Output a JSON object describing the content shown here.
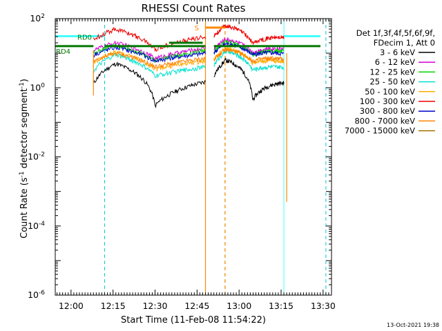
{
  "chart_data": {
    "type": "line",
    "title": "RHESSI Count Rates",
    "xlabel": "Start Time (11-Feb-08 11:54:22)",
    "ylabel": "Count Rate (s-1 detector segment-1)",
    "ylabel_parts": {
      "pre": "Count Rate (s",
      "sup1": "-1",
      "mid": " detector segment",
      "sup2": "-1",
      "post": ")"
    },
    "xscale": "time",
    "yscale": "log",
    "xlim": [
      "11:54:22",
      "13:33:00"
    ],
    "ylim": [
      1e-06,
      100
    ],
    "x_ticks": [
      "12:00",
      "12:15",
      "12:30",
      "12:45",
      "13:00",
      "13:15",
      "13:30"
    ],
    "y_ticks": [
      {
        "base": "10",
        "exp": "-6",
        "value": 1e-06
      },
      {
        "base": "10",
        "exp": "-4",
        "value": 0.0001
      },
      {
        "base": "10",
        "exp": "-2",
        "value": 0.01
      },
      {
        "base": "10",
        "exp": "0",
        "value": 1
      },
      {
        "base": "10",
        "exp": "2",
        "value": 100
      }
    ],
    "legend_header": [
      "Det 1f,3f,4f,5f,6f,9f,",
      "FDecim 1, Att 0"
    ],
    "legend_placement": "right",
    "series": [
      {
        "name": "3 - 6 keV",
        "color": "#000000",
        "levels": {
          "start": 1.3,
          "peak": 5,
          "trough": 0.3,
          "end": 1.5
        }
      },
      {
        "name": "6 - 12 keV",
        "color": "#d400d4",
        "levels": {
          "start": 12,
          "peak": 20,
          "trough": 7,
          "end": 14
        }
      },
      {
        "name": "12 - 25 keV",
        "color": "#00d400",
        "levels": {
          "start": 10,
          "peak": 17,
          "trough": 6,
          "end": 12
        }
      },
      {
        "name": "25 - 50 keV",
        "color": "#00e0d0",
        "levels": {
          "start": 3,
          "peak": 9,
          "trough": 2.2,
          "end": 4
        }
      },
      {
        "name": "50 - 100 keV",
        "color": "#ffaa00",
        "levels": {
          "start": 5,
          "peak": 11,
          "trough": 3.5,
          "end": 6
        }
      },
      {
        "name": "100 - 300 keV",
        "color": "#ee0000",
        "levels": {
          "start": 25,
          "peak": 50,
          "trough": 13,
          "end": 30
        }
      },
      {
        "name": "300 - 800 keV",
        "color": "#0000cc",
        "levels": {
          "start": 9,
          "peak": 15,
          "trough": 6,
          "end": 10
        }
      },
      {
        "name": "800 - 7000 keV",
        "color": "#ff8000",
        "levels": {
          "start": 6,
          "peak": 10,
          "trough": 4,
          "end": 7
        }
      },
      {
        "name": "7000 - 15000 keV",
        "color": "#a07000",
        "levels": {
          "start": 0,
          "peak": 0,
          "trough": 0,
          "end": 0
        }
      }
    ],
    "segments": [
      {
        "start": "12:08",
        "end": "12:48"
      },
      {
        "start": "12:51",
        "end": "13:16"
      }
    ],
    "annotations": {
      "rd0_label": "RD0",
      "rd4_label": "RD4",
      "s_label": "S",
      "attenuator_level": 31,
      "rd0_level": 16,
      "rd4_level": 20,
      "s_level": 55,
      "s_bar": [
        "12:48",
        "12:55"
      ],
      "solid_lines": [
        "11:54:22",
        "13:16"
      ],
      "dashed_lines": [
        "12:12",
        "12:55",
        "13:31"
      ],
      "orange_lines": [
        "12:48",
        "12:55"
      ],
      "colors": {
        "attenuator": "#44ffff",
        "rd": "#007700",
        "s": "#ff8800",
        "solid_vline": "#44ffff",
        "dashed_vline": "#00cccc",
        "orange_vline": "#ff8800"
      }
    },
    "grid": false
  },
  "footer": {
    "timestamp": "13-Oct-2021 19:38"
  }
}
